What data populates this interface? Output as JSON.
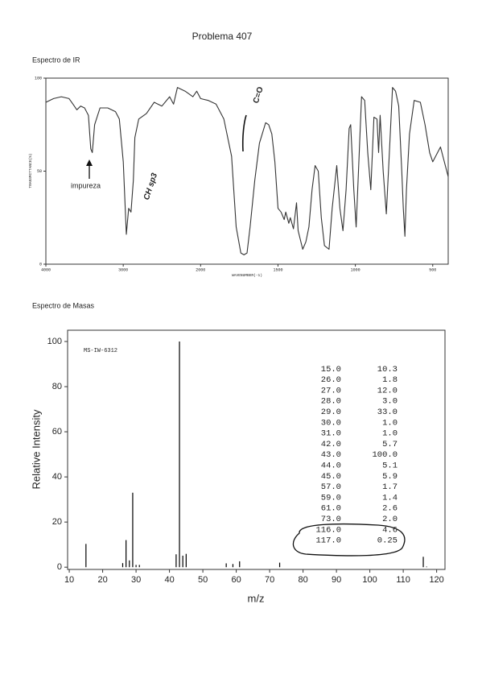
{
  "title": "Problema 407",
  "chart_data": [
    {
      "type": "line",
      "title": "Espectro de IR",
      "x_label": "WAVENUMBER(-1)",
      "y_label": "TRANSMITTANCE(%)",
      "color": "#333333",
      "annotations": [
        "impureza",
        "CH sp3",
        "C=O"
      ],
      "x": [
        4000,
        3900,
        3800,
        3700,
        3650,
        3600,
        3550,
        3500,
        3450,
        3420,
        3400,
        3370,
        3300,
        3200,
        3100,
        3050,
        3000,
        2960,
        2930,
        2900,
        2870,
        2850,
        2800,
        2700,
        2600,
        2500,
        2400,
        2350,
        2300,
        2200,
        2100,
        2050,
        2000,
        1950,
        1900,
        1850,
        1800,
        1770,
        1740,
        1720,
        1700,
        1680,
        1650,
        1620,
        1580,
        1560,
        1540,
        1520,
        1500,
        1480,
        1460,
        1450,
        1430,
        1420,
        1400,
        1380,
        1370,
        1340,
        1320,
        1300,
        1280,
        1260,
        1240,
        1220,
        1200,
        1170,
        1150,
        1120,
        1100,
        1080,
        1060,
        1040,
        1030,
        1010,
        995,
        980,
        960,
        940,
        920,
        900,
        880,
        860,
        850,
        840,
        820,
        800,
        780,
        760,
        740,
        720,
        700,
        690,
        680,
        670,
        650,
        620,
        580,
        550,
        520,
        500,
        450,
        400
      ],
      "values": [
        87,
        89,
        90,
        89,
        86,
        83,
        85,
        84,
        80,
        62,
        60,
        75,
        84,
        84,
        82,
        78,
        55,
        16,
        30,
        28,
        45,
        68,
        78,
        81,
        87,
        85,
        90,
        86,
        95,
        93,
        90,
        93,
        89,
        88,
        86,
        78,
        58,
        20,
        6,
        5,
        6,
        20,
        45,
        65,
        76,
        75,
        70,
        55,
        30,
        28,
        24,
        28,
        22,
        25,
        19,
        33,
        18,
        8,
        12,
        20,
        40,
        53,
        50,
        25,
        10,
        8,
        30,
        53,
        30,
        18,
        40,
        73,
        75,
        40,
        20,
        50,
        90,
        88,
        60,
        40,
        79,
        78,
        60,
        80,
        50,
        27,
        60,
        95,
        93,
        85,
        50,
        30,
        15,
        40,
        70,
        88,
        87,
        75,
        60,
        55,
        63,
        47
      ],
      "xlim": [
        4000,
        400
      ],
      "xticks": [
        4000,
        3000,
        2000,
        1500,
        1000,
        500
      ],
      "ylim": [
        0,
        100
      ],
      "yticks": [
        0,
        50,
        100
      ]
    },
    {
      "type": "bar",
      "title": "Espectro de Masas",
      "x_label": "m/z",
      "y_label": "Relative Intensity",
      "color": "#000000",
      "annotations": [
        "MS-IW-6312"
      ],
      "x": [
        15,
        26,
        27,
        28,
        29,
        30,
        31,
        42,
        43,
        44,
        45,
        57,
        59,
        61,
        73,
        116,
        117
      ],
      "x_labels": [
        "15.0",
        "26.0",
        "27.0",
        "28.0",
        "29.0",
        "30.0",
        "31.0",
        "42.0",
        "43.0",
        "44.0",
        "45.0",
        "57.0",
        "59.0",
        "61.0",
        "73.0",
        "116.0",
        "117.0"
      ],
      "values": [
        10.3,
        1.8,
        12,
        3,
        33,
        1,
        1,
        5.7,
        100,
        5.1,
        5.9,
        1.7,
        1.4,
        2.6,
        2,
        4.6,
        0.25
      ],
      "value_labels": [
        "10.3",
        "1.8",
        "12.0",
        "3.0",
        "33.0",
        "1.0",
        "1.0",
        "5.7",
        "100.0",
        "5.1",
        "5.9",
        "1.7",
        "1.4",
        "2.6",
        "2.0",
        "4.6",
        "0.25"
      ],
      "xlim": [
        9.5,
        122.5
      ],
      "xticks": [
        10,
        20,
        30,
        40,
        50,
        60,
        70,
        80,
        90,
        100,
        110,
        120
      ],
      "ylim": [
        -1,
        105
      ],
      "yticks": [
        0,
        20,
        40,
        60,
        80,
        100
      ]
    }
  ]
}
